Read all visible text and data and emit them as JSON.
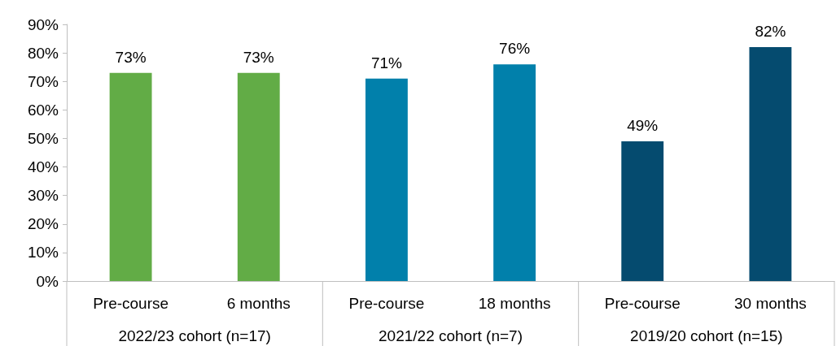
{
  "chart_data": {
    "type": "bar",
    "categories": [
      "Pre-course",
      "6 months",
      "Pre-course",
      "18 months",
      "Pre-course",
      "30 months"
    ],
    "values": [
      73,
      73,
      71,
      76,
      49,
      82
    ],
    "colors": [
      "#62ac46",
      "#62ac46",
      "#0180ab",
      "#0180ab",
      "#054b6f",
      "#054b6f"
    ],
    "value_labels": [
      "73%",
      "73%",
      "71%",
      "76%",
      "49%",
      "82%"
    ],
    "ylim": [
      0,
      90
    ],
    "yticks": [
      {
        "value": 0,
        "label": "0%"
      },
      {
        "value": 10,
        "label": "10%"
      },
      {
        "value": 20,
        "label": "20%"
      },
      {
        "value": 30,
        "label": "30%"
      },
      {
        "value": 40,
        "label": "40%"
      },
      {
        "value": 50,
        "label": "50%"
      },
      {
        "value": 60,
        "label": "60%"
      },
      {
        "value": 70,
        "label": "70%"
      },
      {
        "value": 80,
        "label": "80%"
      },
      {
        "value": 90,
        "label": "90%"
      }
    ],
    "annotations": [
      "2022/23 cohort (n=17)",
      "2021/22 cohort (n=7)",
      "2019/20 cohort (n=15)"
    ],
    "grid": false
  }
}
